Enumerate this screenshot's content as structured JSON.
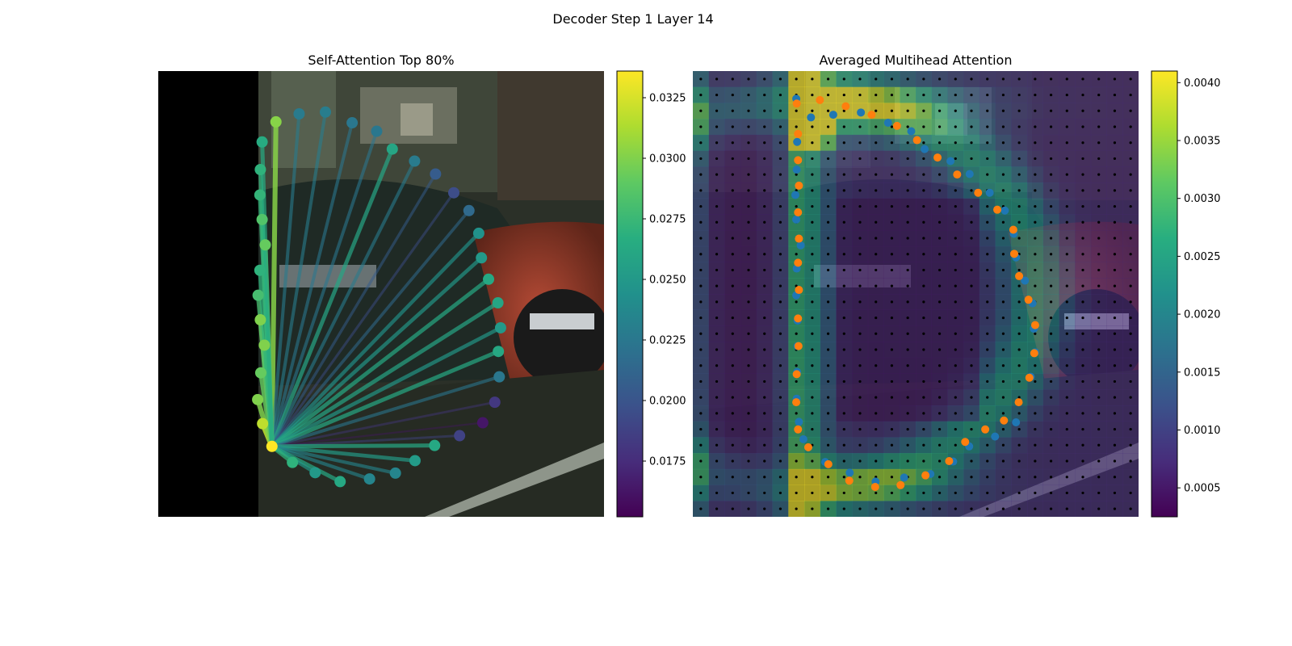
{
  "figure": {
    "title": "Decoder Step 1 Layer 14"
  },
  "chart_data": [
    {
      "type": "scatter",
      "title": "Self-Attention Top 80%",
      "colormap": "viridis",
      "colorbar": {
        "range": [
          0.0152,
          0.0336
        ],
        "ticks": [
          0.0175,
          0.02,
          0.0225,
          0.025,
          0.0275,
          0.03,
          0.0325
        ],
        "tick_labels": [
          "0.0175",
          "0.0200",
          "0.0225",
          "0.0250",
          "0.0275",
          "0.0300",
          "0.0325"
        ]
      },
      "background": "street photo (parked red car and dark car), left portion black",
      "xlim": [
        0,
        1
      ],
      "ylim": [
        1,
        0
      ],
      "query_point": {
        "x": 0.255,
        "y": 0.842
      },
      "points": [
        {
          "x": 0.264,
          "y": 0.114,
          "v": 0.0302
        },
        {
          "x": 0.316,
          "y": 0.096,
          "v": 0.0228
        },
        {
          "x": 0.375,
          "y": 0.092,
          "v": 0.0229
        },
        {
          "x": 0.435,
          "y": 0.116,
          "v": 0.0225
        },
        {
          "x": 0.49,
          "y": 0.135,
          "v": 0.0225
        },
        {
          "x": 0.525,
          "y": 0.175,
          "v": 0.026
        },
        {
          "x": 0.575,
          "y": 0.202,
          "v": 0.0228
        },
        {
          "x": 0.622,
          "y": 0.231,
          "v": 0.0205
        },
        {
          "x": 0.663,
          "y": 0.273,
          "v": 0.0195
        },
        {
          "x": 0.697,
          "y": 0.313,
          "v": 0.0215
        },
        {
          "x": 0.719,
          "y": 0.364,
          "v": 0.0245
        },
        {
          "x": 0.725,
          "y": 0.419,
          "v": 0.025
        },
        {
          "x": 0.741,
          "y": 0.467,
          "v": 0.0262
        },
        {
          "x": 0.762,
          "y": 0.52,
          "v": 0.026
        },
        {
          "x": 0.768,
          "y": 0.576,
          "v": 0.025
        },
        {
          "x": 0.763,
          "y": 0.629,
          "v": 0.0262
        },
        {
          "x": 0.765,
          "y": 0.686,
          "v": 0.0225
        },
        {
          "x": 0.755,
          "y": 0.743,
          "v": 0.0182
        },
        {
          "x": 0.728,
          "y": 0.789,
          "v": 0.0163
        },
        {
          "x": 0.676,
          "y": 0.818,
          "v": 0.0188
        },
        {
          "x": 0.62,
          "y": 0.84,
          "v": 0.0262
        },
        {
          "x": 0.576,
          "y": 0.874,
          "v": 0.0252
        },
        {
          "x": 0.532,
          "y": 0.902,
          "v": 0.0235
        },
        {
          "x": 0.474,
          "y": 0.915,
          "v": 0.0235
        },
        {
          "x": 0.408,
          "y": 0.921,
          "v": 0.0262
        },
        {
          "x": 0.352,
          "y": 0.901,
          "v": 0.025
        },
        {
          "x": 0.301,
          "y": 0.878,
          "v": 0.027
        },
        {
          "x": 0.234,
          "y": 0.791,
          "v": 0.0318
        },
        {
          "x": 0.223,
          "y": 0.737,
          "v": 0.03
        },
        {
          "x": 0.23,
          "y": 0.677,
          "v": 0.0292
        },
        {
          "x": 0.238,
          "y": 0.615,
          "v": 0.03
        },
        {
          "x": 0.229,
          "y": 0.558,
          "v": 0.03
        },
        {
          "x": 0.224,
          "y": 0.503,
          "v": 0.028
        },
        {
          "x": 0.228,
          "y": 0.447,
          "v": 0.027
        },
        {
          "x": 0.24,
          "y": 0.39,
          "v": 0.0292
        },
        {
          "x": 0.233,
          "y": 0.333,
          "v": 0.0285
        },
        {
          "x": 0.228,
          "y": 0.278,
          "v": 0.0272
        },
        {
          "x": 0.229,
          "y": 0.221,
          "v": 0.027
        },
        {
          "x": 0.233,
          "y": 0.159,
          "v": 0.0265
        }
      ]
    },
    {
      "type": "heatmap",
      "title": "Averaged Multihead Attention",
      "colormap": "viridis",
      "grid_size": [
        28,
        28
      ],
      "colorbar": {
        "range": [
          0.00025,
          0.0041
        ],
        "ticks": [
          0.0005,
          0.001,
          0.0015,
          0.002,
          0.0025,
          0.003,
          0.0035,
          0.004
        ],
        "tick_labels": [
          "0.0005",
          "0.0010",
          "0.0015",
          "0.0020",
          "0.0025",
          "0.0030",
          "0.0035",
          "0.0040"
        ]
      },
      "background": "same street photo overlaid with attention heatmap and grid of black reference points",
      "xlim": [
        0,
        1
      ],
      "ylim": [
        1,
        0
      ],
      "series": [
        {
          "name": "",
          "color": "#1f77b4",
          "points": [
            {
              "x": 0.232,
              "y": 0.062
            },
            {
              "x": 0.265,
              "y": 0.104
            },
            {
              "x": 0.315,
              "y": 0.098
            },
            {
              "x": 0.377,
              "y": 0.093
            },
            {
              "x": 0.438,
              "y": 0.116
            },
            {
              "x": 0.49,
              "y": 0.135
            },
            {
              "x": 0.52,
              "y": 0.175
            },
            {
              "x": 0.578,
              "y": 0.202
            },
            {
              "x": 0.621,
              "y": 0.231
            },
            {
              "x": 0.666,
              "y": 0.273
            },
            {
              "x": 0.7,
              "y": 0.313
            },
            {
              "x": 0.72,
              "y": 0.365
            },
            {
              "x": 0.725,
              "y": 0.418
            },
            {
              "x": 0.745,
              "y": 0.47
            },
            {
              "x": 0.762,
              "y": 0.521
            },
            {
              "x": 0.765,
              "y": 0.578
            },
            {
              "x": 0.768,
              "y": 0.631
            },
            {
              "x": 0.758,
              "y": 0.686
            },
            {
              "x": 0.725,
              "y": 0.788
            },
            {
              "x": 0.678,
              "y": 0.82
            },
            {
              "x": 0.62,
              "y": 0.842
            },
            {
              "x": 0.584,
              "y": 0.876
            },
            {
              "x": 0.533,
              "y": 0.904
            },
            {
              "x": 0.474,
              "y": 0.912
            },
            {
              "x": 0.41,
              "y": 0.921
            },
            {
              "x": 0.352,
              "y": 0.901
            },
            {
              "x": 0.297,
              "y": 0.877
            },
            {
              "x": 0.248,
              "y": 0.826
            },
            {
              "x": 0.238,
              "y": 0.787
            },
            {
              "x": 0.233,
              "y": 0.735
            },
            {
              "x": 0.234,
              "y": 0.675
            },
            {
              "x": 0.235,
              "y": 0.617
            },
            {
              "x": 0.235,
              "y": 0.56
            },
            {
              "x": 0.232,
              "y": 0.503
            },
            {
              "x": 0.233,
              "y": 0.443
            },
            {
              "x": 0.242,
              "y": 0.391
            },
            {
              "x": 0.232,
              "y": 0.333
            },
            {
              "x": 0.23,
              "y": 0.278
            },
            {
              "x": 0.233,
              "y": 0.221
            },
            {
              "x": 0.234,
              "y": 0.159
            }
          ]
        },
        {
          "name": "",
          "color": "#ff7f0e",
          "points": [
            {
              "x": 0.233,
              "y": 0.073
            },
            {
              "x": 0.285,
              "y": 0.065
            },
            {
              "x": 0.343,
              "y": 0.079
            },
            {
              "x": 0.401,
              "y": 0.098
            },
            {
              "x": 0.458,
              "y": 0.123
            },
            {
              "x": 0.503,
              "y": 0.155
            },
            {
              "x": 0.549,
              "y": 0.194
            },
            {
              "x": 0.593,
              "y": 0.232
            },
            {
              "x": 0.64,
              "y": 0.273
            },
            {
              "x": 0.683,
              "y": 0.311
            },
            {
              "x": 0.719,
              "y": 0.356
            },
            {
              "x": 0.721,
              "y": 0.41
            },
            {
              "x": 0.732,
              "y": 0.46
            },
            {
              "x": 0.753,
              "y": 0.513
            },
            {
              "x": 0.768,
              "y": 0.57
            },
            {
              "x": 0.766,
              "y": 0.633
            },
            {
              "x": 0.755,
              "y": 0.688
            },
            {
              "x": 0.731,
              "y": 0.743
            },
            {
              "x": 0.698,
              "y": 0.784
            },
            {
              "x": 0.656,
              "y": 0.804
            },
            {
              "x": 0.611,
              "y": 0.832
            },
            {
              "x": 0.575,
              "y": 0.875
            },
            {
              "x": 0.522,
              "y": 0.907
            },
            {
              "x": 0.466,
              "y": 0.929
            },
            {
              "x": 0.409,
              "y": 0.933
            },
            {
              "x": 0.351,
              "y": 0.919
            },
            {
              "x": 0.304,
              "y": 0.882
            },
            {
              "x": 0.259,
              "y": 0.844
            },
            {
              "x": 0.236,
              "y": 0.804
            },
            {
              "x": 0.232,
              "y": 0.743
            },
            {
              "x": 0.233,
              "y": 0.68
            },
            {
              "x": 0.237,
              "y": 0.617
            },
            {
              "x": 0.236,
              "y": 0.555
            },
            {
              "x": 0.238,
              "y": 0.491
            },
            {
              "x": 0.236,
              "y": 0.43
            },
            {
              "x": 0.238,
              "y": 0.376
            },
            {
              "x": 0.236,
              "y": 0.317
            },
            {
              "x": 0.238,
              "y": 0.257
            },
            {
              "x": 0.236,
              "y": 0.2
            },
            {
              "x": 0.236,
              "y": 0.141
            }
          ]
        }
      ]
    }
  ]
}
